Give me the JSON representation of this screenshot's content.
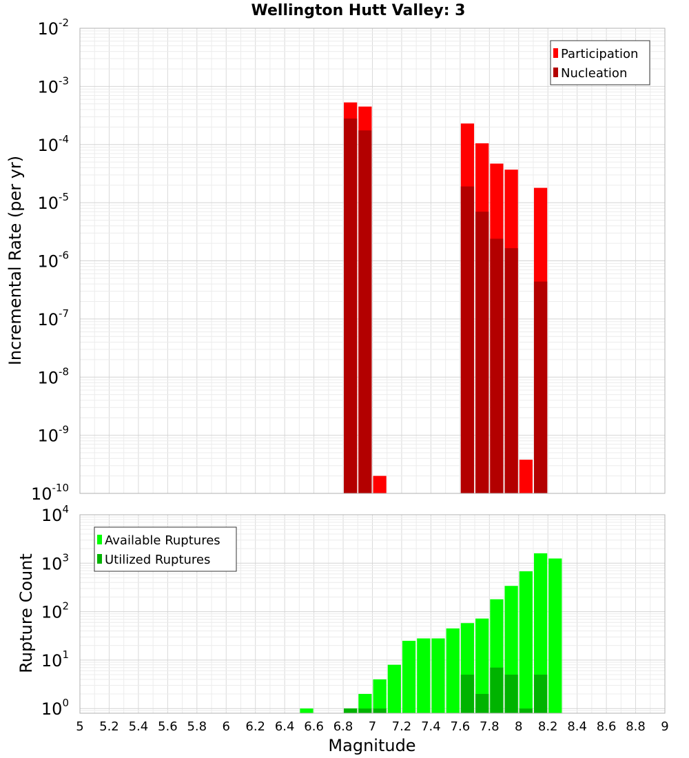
{
  "chart_data": [
    {
      "type": "bar",
      "title": "Wellington Hutt Valley: 3",
      "xlabel": "Magnitude",
      "ylabel": "Incremental Rate (per yr)",
      "yscale": "log",
      "ylim": [
        1e-10,
        0.01
      ],
      "xlim": [
        5,
        9
      ],
      "ytick_labels": [
        {
          "base": "10",
          "exp": "-10",
          "value": 1e-10
        },
        {
          "base": "10",
          "exp": "-9",
          "value": 1e-09
        },
        {
          "base": "10",
          "exp": "-8",
          "value": 1e-08
        },
        {
          "base": "10",
          "exp": "-7",
          "value": 1e-07
        },
        {
          "base": "10",
          "exp": "-6",
          "value": 1e-06
        },
        {
          "base": "10",
          "exp": "-5",
          "value": 1e-05
        },
        {
          "base": "10",
          "exp": "-4",
          "value": 0.0001
        },
        {
          "base": "10",
          "exp": "-3",
          "value": 0.001
        },
        {
          "base": "10",
          "exp": "-2",
          "value": 0.01
        }
      ],
      "grid": true,
      "legend_position": "top-right",
      "bar_width": 0.1,
      "series": [
        {
          "name": "Participation",
          "color": "#ff0000",
          "x": [
            6.85,
            6.95,
            7.05,
            7.65,
            7.75,
            7.85,
            7.95,
            8.05,
            8.15
          ],
          "values": [
            0.00053,
            0.00045,
            2e-10,
            0.00023,
            0.000105,
            4.7e-05,
            3.7e-05,
            3.8e-10,
            1.8e-05
          ]
        },
        {
          "name": "Nucleation",
          "color": "#b30000",
          "x": [
            6.85,
            6.95,
            7.65,
            7.75,
            7.85,
            7.95,
            8.15
          ],
          "values": [
            0.00028,
            0.000175,
            1.9e-05,
            7e-06,
            2.4e-06,
            1.65e-06,
            4.4e-07
          ]
        }
      ]
    },
    {
      "type": "bar",
      "xlabel": "Magnitude",
      "ylabel": "Rupture Count",
      "yscale": "log",
      "ylim": [
        0.8,
        10000
      ],
      "xlim": [
        5,
        9
      ],
      "xtick_labels": [
        "5",
        "5.2",
        "5.4",
        "5.6",
        "5.8",
        "6",
        "6.2",
        "6.4",
        "6.6",
        "6.8",
        "7",
        "7.2",
        "7.4",
        "7.6",
        "7.8",
        "8",
        "8.2",
        "8.4",
        "8.6",
        "8.8",
        "9"
      ],
      "ytick_labels": [
        {
          "base": "10",
          "exp": "0",
          "value": 1
        },
        {
          "base": "10",
          "exp": "1",
          "value": 10
        },
        {
          "base": "10",
          "exp": "2",
          "value": 100
        },
        {
          "base": "10",
          "exp": "3",
          "value": 1000
        },
        {
          "base": "10",
          "exp": "4",
          "value": 10000
        }
      ],
      "grid": true,
      "legend_position": "top-left",
      "bar_width": 0.1,
      "series": [
        {
          "name": "Available Ruptures",
          "color": "#00ff00",
          "x": [
            6.55,
            6.85,
            6.95,
            7.05,
            7.15,
            7.25,
            7.35,
            7.45,
            7.55,
            7.65,
            7.75,
            7.85,
            7.95,
            8.05,
            8.15,
            8.25
          ],
          "values": [
            1,
            1,
            2,
            4,
            8,
            25,
            28,
            28,
            45,
            58,
            72,
            180,
            340,
            680,
            1600,
            1250
          ]
        },
        {
          "name": "Utilized Ruptures",
          "color": "#00b300",
          "x": [
            6.85,
            6.95,
            7.05,
            7.65,
            7.75,
            7.85,
            7.95,
            8.05,
            8.15
          ],
          "values": [
            1,
            1,
            1,
            5,
            2,
            7,
            5,
            1,
            5
          ]
        }
      ]
    }
  ]
}
